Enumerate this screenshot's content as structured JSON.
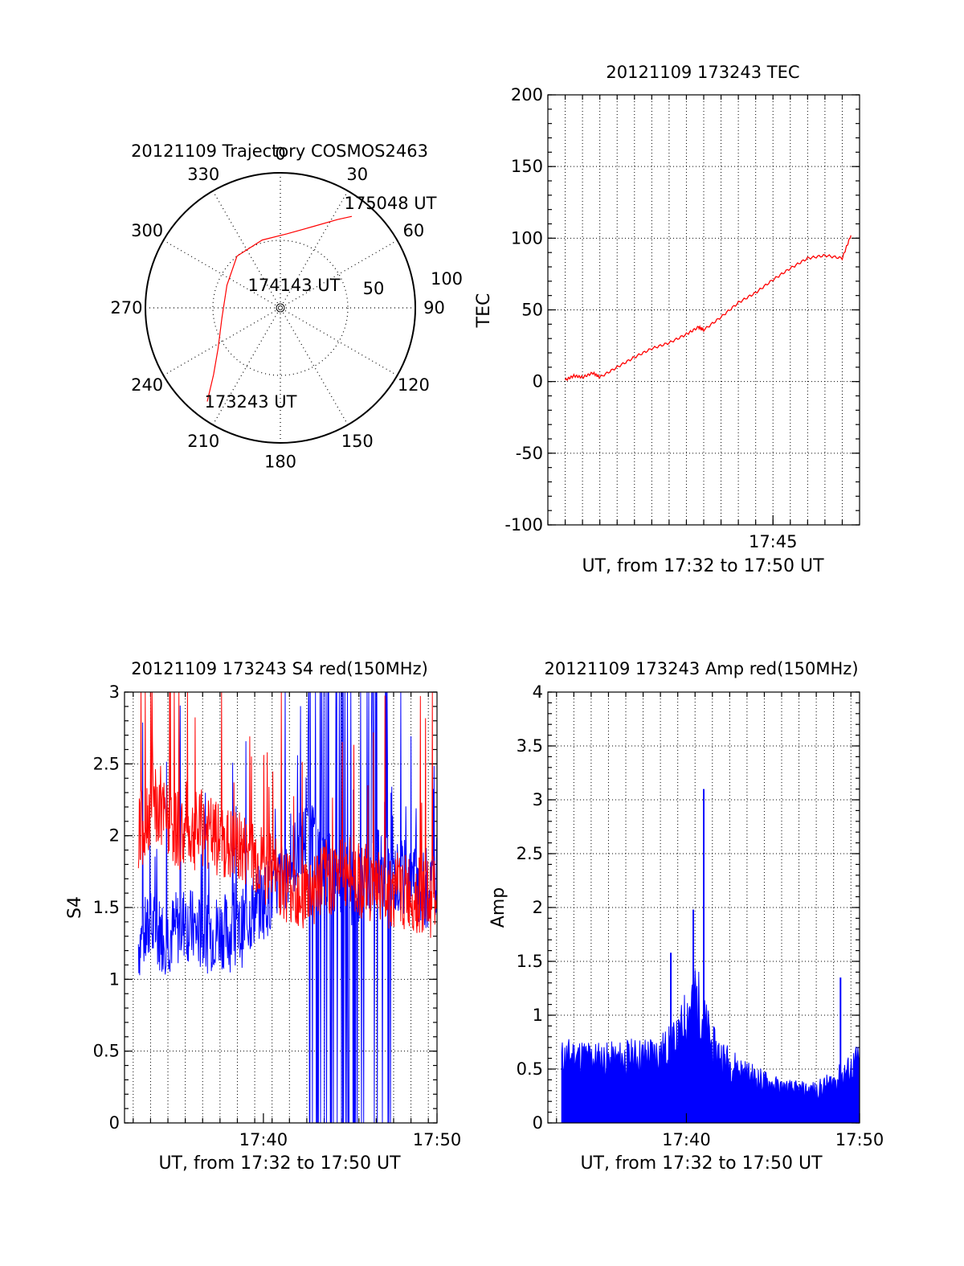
{
  "chart_data": [
    {
      "id": "trajectory",
      "type": "polar",
      "title": "20121109 Trajectory COSMOS2463",
      "angle_labels": [
        "0",
        "30",
        "60",
        "90",
        "120",
        "150",
        "180",
        "210",
        "240",
        "270",
        "300",
        "330"
      ],
      "radial_labels": [
        "50",
        "100"
      ],
      "rlim": [
        0,
        100
      ],
      "track_color": "#ff0000",
      "track": [
        {
          "az": 218,
          "r": 88
        },
        {
          "az": 225,
          "r": 70
        },
        {
          "az": 237,
          "r": 55
        },
        {
          "az": 260,
          "r": 44
        },
        {
          "az": 293,
          "r": 43
        },
        {
          "az": 320,
          "r": 50
        },
        {
          "az": 345,
          "r": 52
        },
        {
          "az": 5,
          "r": 55
        },
        {
          "az": 22,
          "r": 65
        },
        {
          "az": 33,
          "r": 78
        },
        {
          "az": 38,
          "r": 86
        }
      ],
      "annotations": [
        {
          "text": "175048 UT",
          "az": 42,
          "r": 86
        },
        {
          "text": "174143 UT",
          "az": 330,
          "r": 18
        },
        {
          "text": "173243 UT",
          "az": 208,
          "r": 70
        }
      ]
    },
    {
      "id": "tec",
      "type": "line",
      "title": "20121109 173243 TEC",
      "xlabel": "UT, from 17:32 to 17:50 UT",
      "ylabel": "TEC",
      "xlim": [
        0,
        18
      ],
      "ylim": [
        -100,
        200
      ],
      "yticks": [
        -100,
        -50,
        0,
        50,
        100,
        150,
        200
      ],
      "xticks": [
        {
          "t": 13,
          "label": "17:45"
        }
      ],
      "color": "#ff0000",
      "x": [
        1.0,
        1.5,
        2.0,
        2.6,
        3.0,
        4.0,
        5.0,
        6.0,
        7.0,
        8.0,
        8.7,
        9.0,
        10.0,
        11.0,
        12.0,
        13.0,
        14.0,
        15.0,
        16.0,
        17.0,
        17.5
      ],
      "y": [
        1,
        4,
        3,
        6,
        3,
        10,
        17,
        23,
        27,
        33,
        38,
        36,
        45,
        55,
        62,
        71,
        79,
        86,
        88,
        86,
        102
      ]
    },
    {
      "id": "s4",
      "type": "line",
      "title": "20121109 173243 S4 red(150MHz)",
      "xlabel": "UT, from 17:32 to 17:50 UT",
      "ylabel": "S4",
      "xlim": [
        17.5,
        35.5
      ],
      "ylim": [
        0,
        3
      ],
      "yticks": [
        0,
        0.5,
        1,
        1.5,
        2,
        2.5,
        3
      ],
      "yticklabels": [
        "0",
        "0.5",
        "1",
        "1.5",
        "2",
        "2.5",
        "3"
      ],
      "xticks": [
        {
          "t": 25.5,
          "label": "17:40"
        },
        {
          "t": 35.5,
          "label": "17:50"
        }
      ],
      "series": [
        {
          "color": "#ff0000",
          "x": [
            18.3,
            19.0,
            20.0,
            21.0,
            22.0,
            23.0,
            24.0,
            25.0,
            26.0,
            27.0,
            28.0,
            29.0,
            30.0,
            31.0,
            32.0,
            33.0,
            34.0,
            35.0,
            35.5
          ],
          "y": [
            2.0,
            2.2,
            2.1,
            2.0,
            2.05,
            1.95,
            1.9,
            1.85,
            1.75,
            1.65,
            1.6,
            1.7,
            1.75,
            1.7,
            1.65,
            1.6,
            1.6,
            1.55,
            1.6
          ]
        },
        {
          "color": "#0000ff",
          "x": [
            18.3,
            19.0,
            20.0,
            21.0,
            22.0,
            23.0,
            24.0,
            25.0,
            26.0,
            27.0,
            28.0,
            29.0,
            30.0,
            31.0,
            32.0,
            33.0,
            34.0,
            35.0,
            35.5
          ],
          "y": [
            1.25,
            1.35,
            1.3,
            1.4,
            1.3,
            1.35,
            1.3,
            1.5,
            1.6,
            1.8,
            2.0,
            1.8,
            1.7,
            1.6,
            1.8,
            1.7,
            1.7,
            1.6,
            1.75
          ]
        }
      ]
    },
    {
      "id": "amp",
      "type": "area",
      "title": "20121109 173243 Amp red(150MHz)",
      "xlabel": "UT, from 17:32 to 17:50 UT",
      "ylabel": "Amp",
      "xlim": [
        17.5,
        35.5
      ],
      "ylim": [
        0,
        4
      ],
      "yticks": [
        0,
        0.5,
        1,
        1.5,
        2,
        2.5,
        3,
        3.5,
        4
      ],
      "yticklabels": [
        "0",
        "0.5",
        "1",
        "1.5",
        "2",
        "2.5",
        "3",
        "3.5",
        "4"
      ],
      "xticks": [
        {
          "t": 25.5,
          "label": "17:40"
        },
        {
          "t": 35.5,
          "label": "17:50"
        }
      ],
      "color": "#0000ff",
      "x": [
        18.3,
        19.0,
        20.0,
        21.0,
        22.0,
        23.0,
        24.0,
        25.0,
        25.5,
        26.0,
        27.0,
        28.0,
        29.0,
        30.0,
        31.0,
        32.0,
        33.0,
        34.0,
        35.0,
        35.5
      ],
      "y": [
        0.6,
        0.62,
        0.6,
        0.58,
        0.6,
        0.62,
        0.65,
        0.75,
        1.0,
        1.2,
        0.7,
        0.55,
        0.45,
        0.38,
        0.32,
        0.3,
        0.3,
        0.38,
        0.5,
        0.6
      ],
      "peaks": [
        {
          "x": 24.6,
          "y": 1.58
        },
        {
          "x": 25.9,
          "y": 1.98
        },
        {
          "x": 26.5,
          "y": 3.1
        },
        {
          "x": 34.4,
          "y": 1.35
        }
      ]
    }
  ]
}
